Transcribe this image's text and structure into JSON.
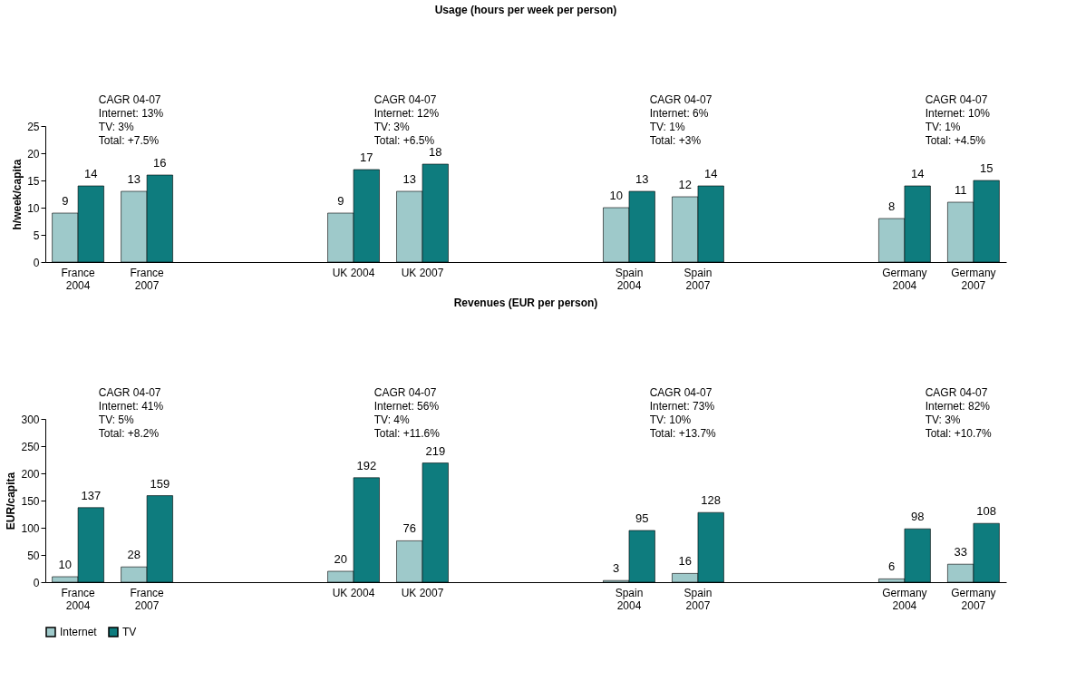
{
  "chart_data": [
    {
      "type": "bar",
      "title": "Usage (hours per week per person)",
      "ylabel": "h/week/capita",
      "categories": [
        "France 2004",
        "France 2007",
        null,
        null,
        "UK 2004",
        "UK 2007",
        null,
        null,
        "Spain 2004",
        "Spain 2007",
        null,
        null,
        "Germany 2004",
        "Germany 2007"
      ],
      "series": [
        {
          "name": "Internet",
          "color": "#9ec9ca",
          "values": [
            9,
            13,
            null,
            null,
            9,
            13,
            null,
            null,
            10,
            12,
            null,
            null,
            8,
            11
          ]
        },
        {
          "name": "TV",
          "color": "#0e7c7e",
          "values": [
            14,
            16,
            null,
            null,
            17,
            18,
            null,
            null,
            13,
            14,
            null,
            null,
            14,
            15
          ]
        }
      ],
      "ylim": [
        0,
        25
      ],
      "yticks": [
        0,
        5,
        10,
        15,
        20,
        25
      ],
      "grid": false,
      "data_labels": true,
      "legend": "bottom",
      "annotations": [
        "CAGR 04-07\nInternet: 13%\nTV: 3%\nTotal: +7.5%",
        "CAGR 04-07\nInternet: 12%\nTV: 3%\nTotal: +6.5%",
        "CAGR 04-07\nInternet: 6%\nTV: 1%\nTotal: +3%",
        "CAGR 04-07\nInternet: 10%\nTV: 1%\nTotal: +4.5%"
      ]
    },
    {
      "type": "bar",
      "title": "Revenues  (EUR per person)",
      "ylabel": "EUR/capita",
      "categories": [
        "France 2004",
        "France 2007",
        null,
        null,
        "UK 2004",
        "UK 2007",
        null,
        null,
        "Spain 2004",
        "Spain 2007",
        null,
        null,
        "Germany 2004",
        "Germany 2007"
      ],
      "series": [
        {
          "color": "#9ec9ca",
          "values": [
            10,
            28,
            null,
            null,
            20,
            76,
            null,
            null,
            3,
            16,
            null,
            null,
            6,
            33
          ]
        },
        {
          "color": "#0e7c7e",
          "values": [
            137,
            159,
            null,
            null,
            192,
            219,
            null,
            null,
            95,
            128,
            null,
            null,
            98,
            108
          ]
        }
      ],
      "ylim": [
        0,
        300
      ],
      "yticks": [
        0,
        50,
        100,
        150,
        200,
        250,
        300
      ],
      "grid": false,
      "data_labels": true,
      "annotations": [
        "CAGR 04-07\nInternet: 41%\nTV: 5%\nTotal: +8.2%",
        "CAGR 04-07\nInternet: 56%\nTV: 4%\nTotal: +11.6%",
        "CAGR 04-07\nInternet: 73%\nTV: 10%\nTotal: +13.7%",
        "CAGR 04-07\nInternet: 82%\nTV: 3%\nTotal: +10.7%"
      ]
    }
  ]
}
